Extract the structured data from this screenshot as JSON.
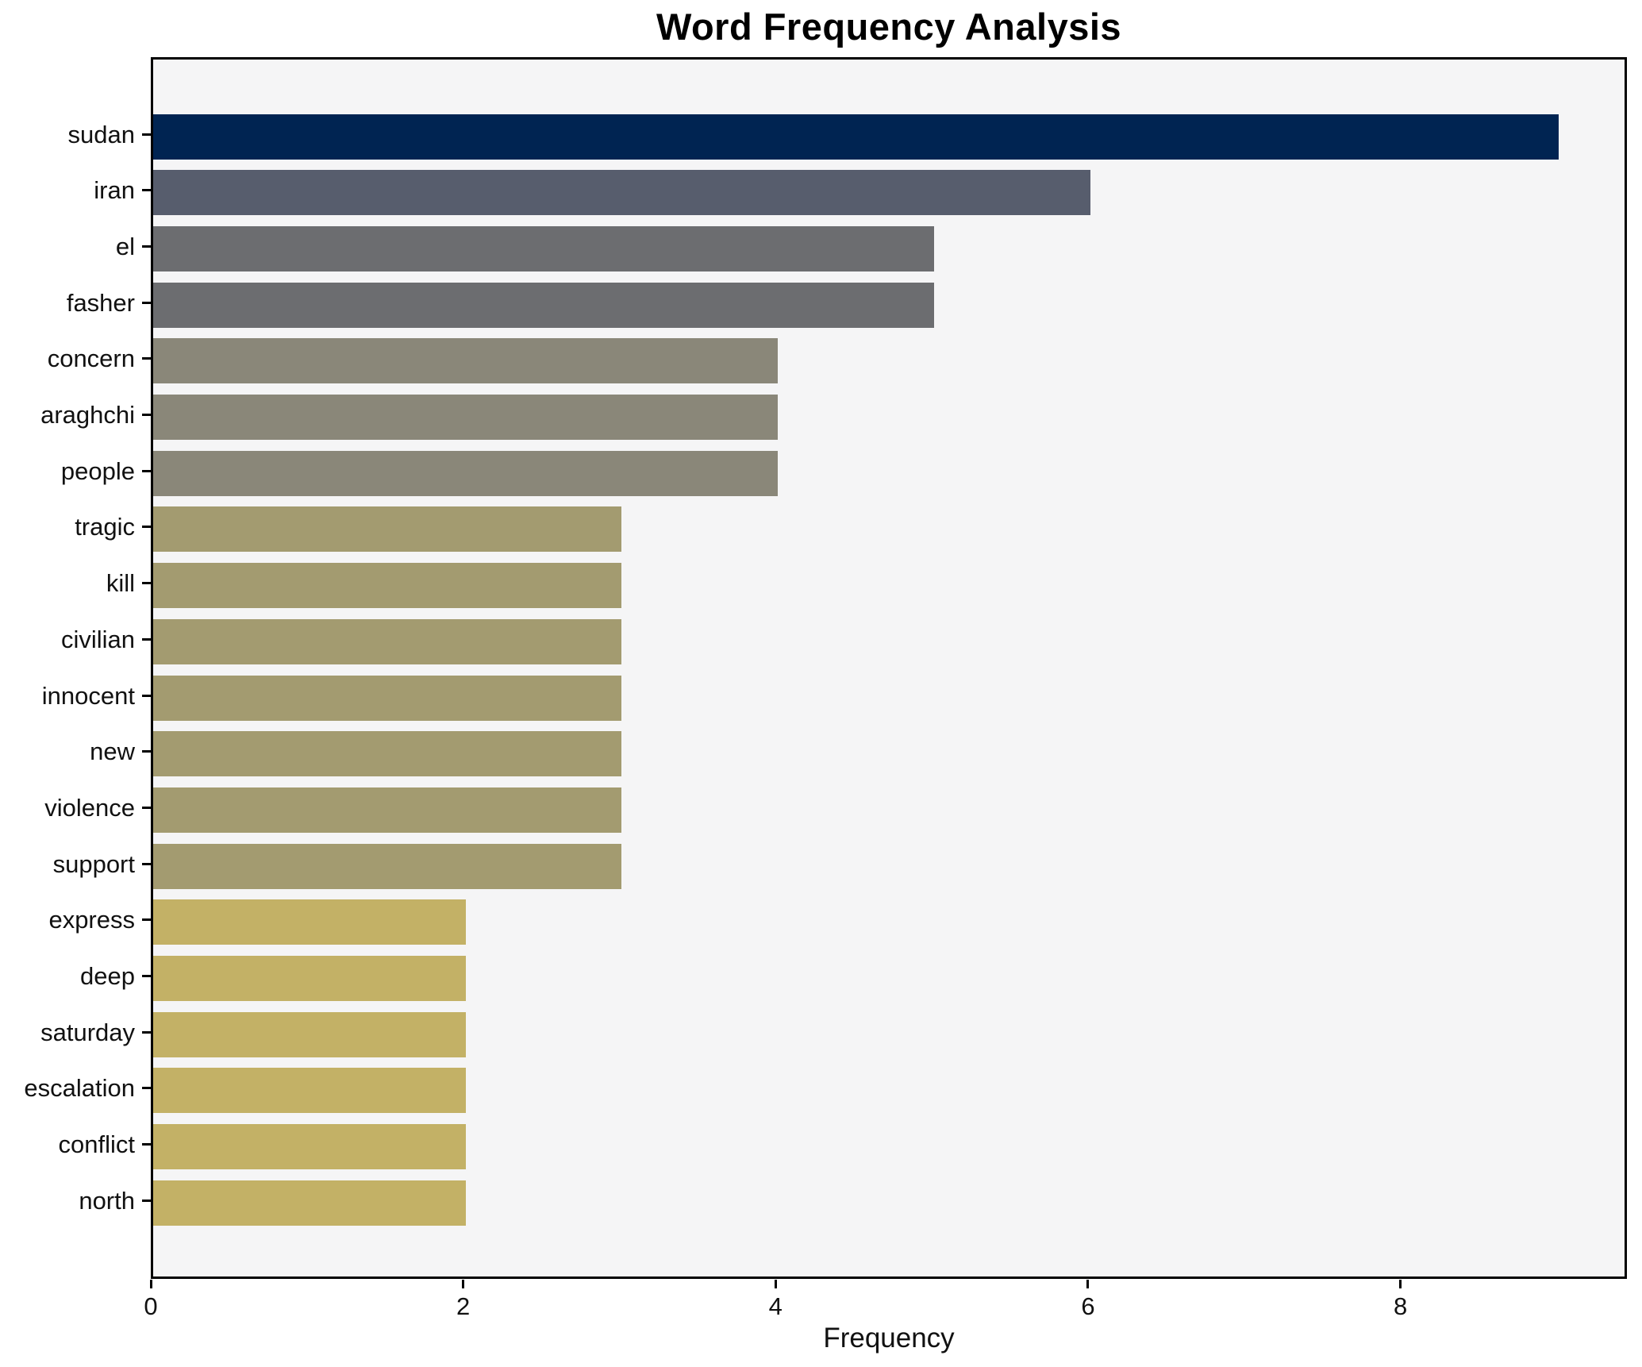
{
  "chart_data": {
    "type": "bar",
    "orientation": "horizontal",
    "title": "Word Frequency Analysis",
    "xlabel": "Frequency",
    "ylabel": "",
    "categories": [
      "sudan",
      "iran",
      "el",
      "fasher",
      "concern",
      "araghchi",
      "people",
      "tragic",
      "kill",
      "civilian",
      "innocent",
      "new",
      "violence",
      "support",
      "express",
      "deep",
      "saturday",
      "escalation",
      "conflict",
      "north"
    ],
    "values": [
      9,
      6,
      5,
      5,
      4,
      4,
      4,
      3,
      3,
      3,
      3,
      3,
      3,
      3,
      2,
      2,
      2,
      2,
      2,
      2
    ],
    "bar_colors": [
      "#002452",
      "#575d6d",
      "#6c6d70",
      "#6c6d70",
      "#8a8779",
      "#8a8779",
      "#8a8779",
      "#a39b70",
      "#a39b70",
      "#a39b70",
      "#a39b70",
      "#a39b70",
      "#a39b70",
      "#a39b70",
      "#c3b166",
      "#c3b166",
      "#c3b166",
      "#c3b166",
      "#c3b166",
      "#c3b166"
    ],
    "xlim": [
      0,
      9.45
    ],
    "xticks": [
      0,
      2,
      4,
      6,
      8
    ],
    "grid": false,
    "legend": null,
    "colors": {
      "figure_bg": "#ffffff",
      "plot_bg": "#f5f5f6",
      "spine": "#000000",
      "text": "#111111",
      "title_text": "#000000"
    }
  }
}
